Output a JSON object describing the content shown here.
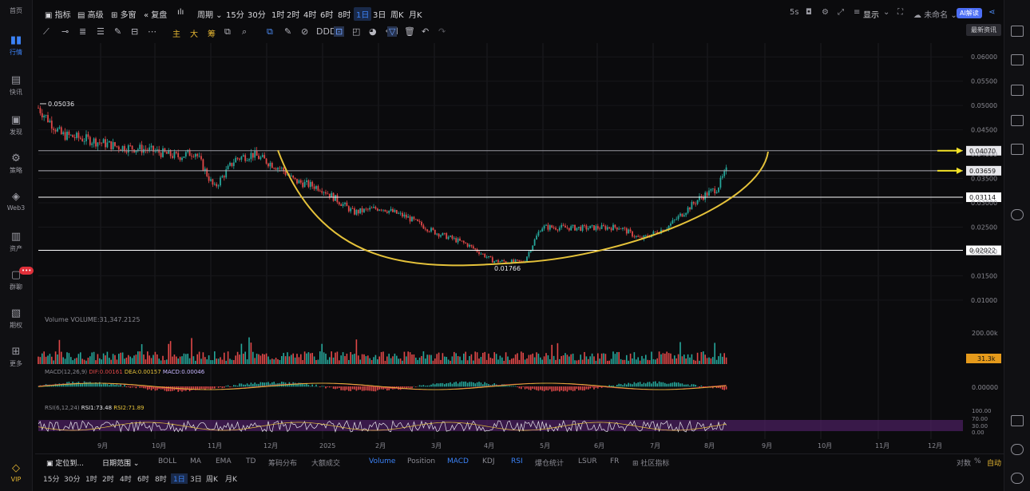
{
  "sidebar": {
    "items": [
      {
        "label": "首页",
        "icon": "home-icon"
      },
      {
        "label": "行情",
        "icon": "bar-chart-icon"
      },
      {
        "label": "快讯",
        "icon": "flash-news-icon"
      },
      {
        "label": "发现",
        "icon": "discover-icon"
      },
      {
        "label": "策略",
        "icon": "strategy-icon"
      },
      {
        "label": "Web3",
        "icon": "web3-icon"
      },
      {
        "label": "资产",
        "icon": "wallet-icon"
      },
      {
        "label": "群聊",
        "icon": "chat-icon"
      },
      {
        "label": "期权",
        "icon": "options-icon"
      },
      {
        "label": "更多",
        "icon": "more-grid-icon"
      },
      {
        "label": "VIP",
        "icon": "vip-diamond-icon"
      }
    ],
    "chat_badge": "•••"
  },
  "topbar": {
    "indicator": "指标",
    "advanced": "高级",
    "multi": "多窗",
    "replay": "复盘",
    "period": "周期",
    "intervals": [
      "15分",
      "30分",
      "1时",
      "2时",
      "4时",
      "6时",
      "8时",
      "1日",
      "3日",
      "周K",
      "月K"
    ],
    "active_interval": "1日",
    "countdown": "5s",
    "display": "显示",
    "layout": "未命名",
    "ai_button": "AI解读",
    "tooltip": "最新资讯"
  },
  "drawing_toolbar": {
    "labels": [
      "主",
      "大",
      "筹"
    ]
  },
  "price_axis": {
    "ticks": [
      "0.06000",
      "0.05500",
      "0.05000",
      "0.04500",
      "0.04000",
      "0.03500",
      "0.03000",
      "0.02500",
      "0.02000",
      "0.01500",
      "0.01000"
    ],
    "highlighted": [
      "0.04070",
      "0.03659",
      "0.03114",
      "0.02022"
    ]
  },
  "annotations": {
    "high": "0.05036",
    "low": "0.01766"
  },
  "time_axis": [
    "9月",
    "10月",
    "11月",
    "12月",
    "2025",
    "2月",
    "3月",
    "4月",
    "5月",
    "6月",
    "7月",
    "8月",
    "9月",
    "10月",
    "11月",
    "12月"
  ],
  "volume_panel": {
    "title": "Volume",
    "legend": "VOLUME:31,347.2125",
    "axis_label": "200.00k",
    "current": "31.3k"
  },
  "macd_panel": {
    "title": "MACD(12,26,9)",
    "dif": "DIF:0.00161",
    "dea": "DEA:0.00157",
    "macd": "MACD:0.00046",
    "axis_label": "0.00000"
  },
  "rsi_panel": {
    "title": "RSI(6,12,24)",
    "rsi1": "RSI1:73.48",
    "rsi2": "RSI2:71.89",
    "axis_labels": [
      "100.00",
      "70.00",
      "30.00",
      "0.00"
    ]
  },
  "bottom_toolbar": {
    "locate": "定位到...",
    "date_range": "日期范围",
    "indicators": [
      "BOLL",
      "MA",
      "EMA",
      "TD",
      "筹码分布",
      "大额成交",
      "Volume",
      "Position",
      "MACD",
      "KDJ",
      "RSI",
      "爆仓统计",
      "LSUR",
      "FR",
      "社区指标"
    ],
    "active_indicators": [
      "Volume",
      "MACD",
      "RSI"
    ],
    "log": "对数",
    "percent": "%",
    "auto": "自动"
  },
  "period_bar": {
    "items": [
      "15分",
      "30分",
      "1时",
      "2时",
      "4时",
      "6时",
      "8时",
      "1日",
      "3日",
      "周K",
      "月K"
    ],
    "active": "1日"
  },
  "colors": {
    "up": "#26a69a",
    "down": "#e04848",
    "accent": "#3b82f6",
    "arc": "#e5c23a",
    "arrow": "#f2e128",
    "rsi_band": "#4a1f5e"
  },
  "chart_data": {
    "type": "candlestick",
    "ylim": [
      0.008,
      0.0625
    ],
    "close_path": [
      [
        "2024-08-20",
        0.0495
      ],
      [
        "2024-09-01",
        0.044
      ],
      [
        "2024-09-15",
        0.043
      ],
      [
        "2024-10-01",
        0.0415
      ],
      [
        "2024-10-15",
        0.041
      ],
      [
        "2024-11-01",
        0.0395
      ],
      [
        "2024-11-10",
        0.0405
      ],
      [
        "2024-11-20",
        0.033
      ],
      [
        "2024-12-01",
        0.039
      ],
      [
        "2024-12-10",
        0.04
      ],
      [
        "2024-12-25",
        0.037
      ],
      [
        "2025-01-01",
        0.0345
      ],
      [
        "2025-01-15",
        0.033
      ],
      [
        "2025-02-01",
        0.028
      ],
      [
        "2025-02-15",
        0.029
      ],
      [
        "2025-03-01",
        0.027
      ],
      [
        "2025-03-15",
        0.024
      ],
      [
        "2025-04-01",
        0.0215
      ],
      [
        "2025-04-15",
        0.018
      ],
      [
        "2025-05-01",
        0.0178
      ],
      [
        "2025-05-10",
        0.025
      ],
      [
        "2025-06-01",
        0.0248
      ],
      [
        "2025-06-20",
        0.025
      ],
      [
        "2025-07-01",
        0.0225
      ],
      [
        "2025-07-15",
        0.025
      ],
      [
        "2025-08-01",
        0.031
      ],
      [
        "2025-08-10",
        0.033
      ],
      [
        "2025-08-15",
        0.0366
      ]
    ]
  }
}
